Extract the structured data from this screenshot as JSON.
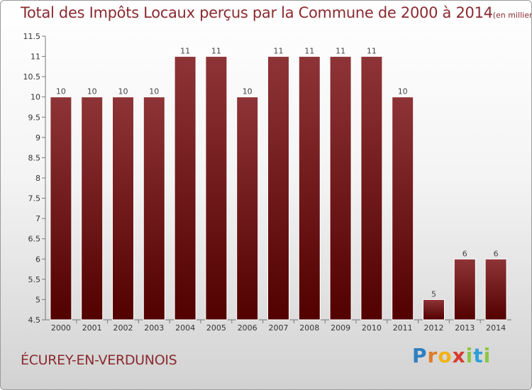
{
  "header": {
    "title": "Total des Impôts Locaux perçus par la Commune de 2000 à 2014",
    "unit": "(en milliers d'€)"
  },
  "footer": {
    "commune": "ÉCUREY-EN-VERDUNOIS"
  },
  "logo": {
    "letters": [
      "P",
      "r",
      "o",
      "x",
      "i",
      "t",
      "i"
    ],
    "colors": [
      "#2f7fc1",
      "#e07b25",
      "#f2b215",
      "#d83a2f",
      "#8cc63f",
      "#2f9fd8",
      "#8cc63f"
    ]
  },
  "colors": {
    "accent": "#8a2a2f",
    "bar_top": "#8e3437",
    "bar_bottom": "#520000"
  },
  "chart_data": {
    "type": "bar",
    "categories": [
      "2000",
      "2001",
      "2002",
      "2003",
      "2004",
      "2005",
      "2006",
      "2007",
      "2008",
      "2009",
      "2010",
      "2011",
      "2012",
      "2013",
      "2014"
    ],
    "values": [
      10,
      10,
      10,
      10,
      11,
      11,
      10,
      11,
      11,
      11,
      11,
      10,
      5,
      6,
      6
    ],
    "ylim": [
      4.5,
      11.5
    ],
    "yticks": [
      4.5,
      5,
      5.5,
      6,
      6.5,
      7,
      7.5,
      8,
      8.5,
      9,
      9.5,
      10,
      10.5,
      11,
      11.5
    ],
    "ytick_labels": [
      "4.5",
      "5",
      "5.5",
      "6",
      "6.5",
      "7",
      "7.5",
      "8",
      "8.5",
      "9",
      "9.5",
      "10",
      "10.5",
      "11",
      "11.5"
    ],
    "grid": false,
    "legend": "none"
  }
}
